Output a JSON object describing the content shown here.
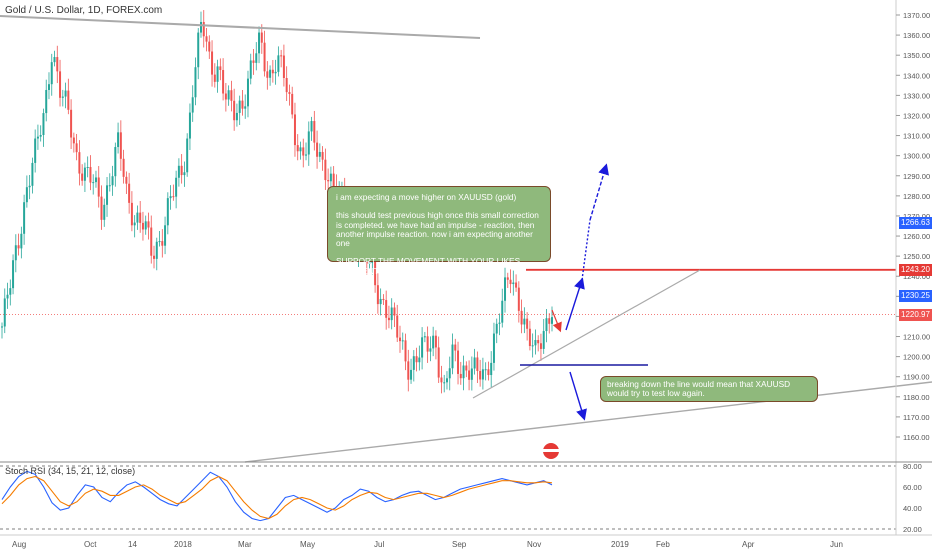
{
  "header": {
    "title": "Gold / U.S. Dollar, 1D, FOREX.com"
  },
  "rsi_header": {
    "title": "Stoch RSI (34, 15, 21, 12, close)"
  },
  "annotations": {
    "note_1": "i am expecting a move higher on XAUUSD (gold)\n\nthis should test previous high once this small correction is completed. we have had an impulse - reaction, then another impulse reaction. now i am expecting another one\n\nSUPPORT THE MOVEMENT WITH YOUR LIKES, COMMENTS AND FOLLOW FOR MORE",
    "note_2": "breaking down the line would mean that XAUUSD would try to test low again."
  },
  "price_tags": {
    "tag_1266": "1266.63",
    "tag_1243": "1243.20",
    "tag_1230": "1230.25",
    "tag_1220": "1220.97"
  },
  "colors": {
    "up": "#26a69a",
    "down": "#ef5350",
    "resistance": "#e53935",
    "arrow": "#1a1adb",
    "trend": "#aaaaaa",
    "k_line": "#2962ff",
    "d_line": "#f57c00",
    "note_bg": "#8fb97c"
  },
  "chart_data": [
    {
      "type": "candlestick",
      "title": "Gold / U.S. Dollar, 1D, FOREX.com",
      "ylim": [
        1150,
        1375
      ],
      "y_ticks": [
        1160,
        1170,
        1180,
        1190,
        1200,
        1210,
        1220,
        1230,
        1240,
        1250,
        1260,
        1270,
        1280,
        1290,
        1300,
        1310,
        1320,
        1330,
        1340,
        1350,
        1360,
        1370
      ],
      "x_ticks": [
        "Aug",
        "Oct",
        "14",
        "2018",
        "Mar",
        "May",
        "Jul",
        "Sep",
        "Nov",
        "2019",
        "Feb",
        "Apr",
        "Jun"
      ],
      "path": [
        1215,
        1235,
        1260,
        1285,
        1300,
        1320,
        1355,
        1330,
        1320,
        1300,
        1290,
        1285,
        1275,
        1290,
        1305,
        1280,
        1270,
        1265,
        1250,
        1260,
        1275,
        1285,
        1300,
        1340,
        1365,
        1345,
        1345,
        1325,
        1320,
        1330,
        1345,
        1355,
        1340,
        1350,
        1335,
        1315,
        1300,
        1310,
        1300,
        1295,
        1280,
        1275,
        1260,
        1255,
        1245,
        1235,
        1225,
        1215,
        1205,
        1195,
        1200,
        1205,
        1210,
        1180,
        1200,
        1195,
        1195,
        1190,
        1190,
        1210,
        1225,
        1240,
        1230,
        1210,
        1200,
        1215,
        1225
      ],
      "levels": [
        {
          "name": "resistance",
          "value": 1243.2
        },
        {
          "name": "current",
          "value": 1220.97
        }
      ]
    },
    {
      "type": "line",
      "title": "Stoch RSI (34, 15, 21, 12, close)",
      "ylim": [
        20,
        80
      ],
      "y_ticks": [
        80,
        60,
        40,
        20
      ],
      "series": [
        {
          "name": "K",
          "values": [
            48,
            60,
            70,
            75,
            72,
            60,
            45,
            38,
            40,
            52,
            62,
            60,
            50,
            46,
            55,
            62,
            65,
            60,
            54,
            48,
            44,
            42,
            50,
            58,
            66,
            74,
            70,
            60,
            46,
            36,
            30,
            28,
            30,
            40,
            50,
            52,
            48,
            44,
            40,
            36,
            40,
            48,
            52,
            58,
            56,
            50,
            46,
            48,
            52,
            55,
            56,
            52,
            48,
            50,
            54,
            58,
            60,
            62,
            64,
            66,
            68,
            66,
            64,
            62,
            64,
            66,
            62
          ]
        },
        {
          "name": "D",
          "values": [
            44,
            52,
            62,
            68,
            70,
            66,
            56,
            46,
            42,
            46,
            54,
            58,
            56,
            52,
            52,
            56,
            60,
            62,
            58,
            52,
            48,
            44,
            46,
            52,
            58,
            66,
            70,
            66,
            56,
            46,
            38,
            32,
            30,
            34,
            42,
            48,
            50,
            48,
            44,
            40,
            38,
            42,
            48,
            52,
            55,
            54,
            50,
            48,
            50,
            52,
            54,
            54,
            52,
            50,
            52,
            55,
            58,
            60,
            62,
            64,
            66,
            66,
            65,
            64,
            64,
            65,
            64
          ]
        }
      ]
    }
  ]
}
